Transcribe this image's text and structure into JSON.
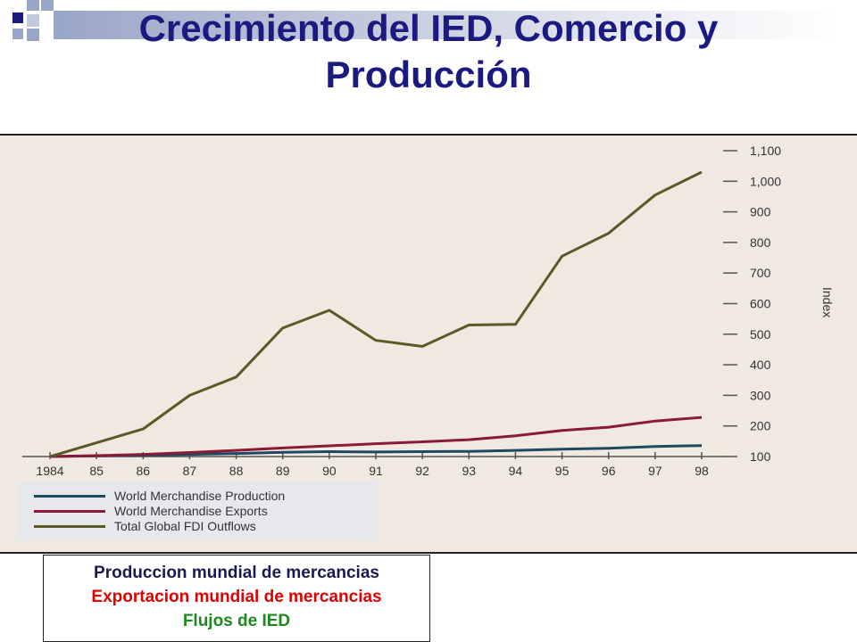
{
  "slide": {
    "title": "Crecimiento del IED, Comercio y Producción"
  },
  "caption": {
    "line1": "Produccion mundial de mercancias",
    "line2": "Exportacion mundial de mercancias",
    "line3": "Flujos de IED",
    "colors": [
      "#1a1a50",
      "#e00000",
      "#1a8a1a"
    ]
  },
  "chart_data": {
    "type": "line",
    "x": [
      "1984",
      "85",
      "86",
      "87",
      "88",
      "89",
      "90",
      "91",
      "92",
      "93",
      "94",
      "95",
      "96",
      "97",
      "98"
    ],
    "ylabel": "Index",
    "ylim": [
      100,
      1100
    ],
    "yticks": [
      {
        "value": 100,
        "label": "100"
      },
      {
        "value": 200,
        "label": "200"
      },
      {
        "value": 300,
        "label": "300"
      },
      {
        "value": 400,
        "label": "400"
      },
      {
        "value": 500,
        "label": "500"
      },
      {
        "value": 600,
        "label": "600"
      },
      {
        "value": 700,
        "label": "700"
      },
      {
        "value": 800,
        "label": "800"
      },
      {
        "value": 900,
        "label": "900"
      },
      {
        "value": 1000,
        "label": "1,000"
      },
      {
        "value": 1100,
        "label": "1,100"
      }
    ],
    "legend_position": "bottom-left",
    "series": [
      {
        "name": "World Merchandise Production",
        "color": "#1d4a5e",
        "values": [
          100,
          102,
          104,
          107,
          110,
          114,
          116,
          115,
          116,
          117,
          120,
          124,
          127,
          133,
          136
        ]
      },
      {
        "name": "World Merchandise Exports",
        "color": "#8a1a35",
        "values": [
          100,
          103,
          107,
          113,
          120,
          128,
          135,
          142,
          148,
          155,
          168,
          185,
          196,
          216,
          228
        ]
      },
      {
        "name": "Total Global FDI Outflows",
        "color": "#5a5a28",
        "values": [
          100,
          145,
          190,
          300,
          360,
          520,
          578,
          480,
          460,
          530,
          532,
          755,
          830,
          955,
          1030
        ]
      }
    ]
  }
}
